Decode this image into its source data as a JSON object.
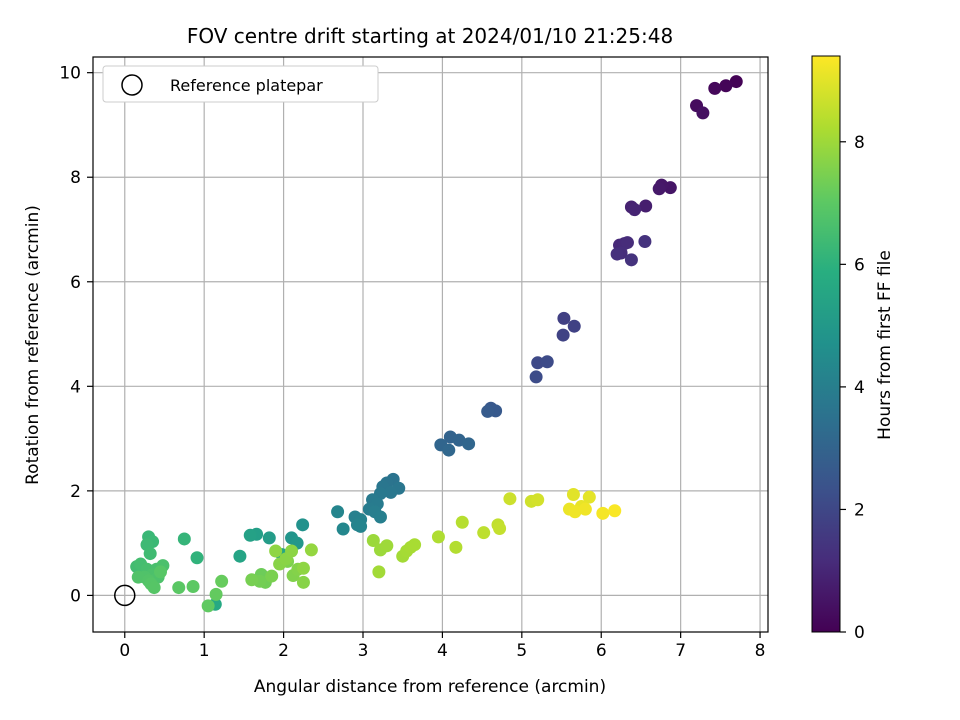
{
  "chart_data": {
    "type": "scatter",
    "title": "FOV centre drift starting at 2024/01/10 21:25:48",
    "xlabel": "Angular distance from reference (arcmin)",
    "ylabel": "Rotation from reference (arcmin)",
    "xlim": [
      -0.4,
      8.1
    ],
    "ylim": [
      -0.7,
      10.3
    ],
    "xticks": [
      0,
      1,
      2,
      3,
      4,
      5,
      6,
      7,
      8
    ],
    "yticks": [
      0,
      2,
      4,
      6,
      8,
      10
    ],
    "grid": true,
    "legend": {
      "placement": "top-left",
      "entries": [
        "Reference platepar"
      ]
    },
    "reference_point": {
      "x": 0,
      "y": 0,
      "label": "Reference platepar"
    },
    "colorbar": {
      "label": "Hours from first FF file",
      "colormap": "viridis",
      "range": [
        0,
        9.4
      ],
      "ticks": [
        0,
        2,
        4,
        6,
        8
      ]
    },
    "points": [
      {
        "x": 7.7,
        "y": 9.83,
        "c": 0.05
      },
      {
        "x": 7.57,
        "y": 9.75,
        "c": 0.12
      },
      {
        "x": 7.43,
        "y": 9.7,
        "c": 0.2
      },
      {
        "x": 7.2,
        "y": 9.37,
        "c": 0.3
      },
      {
        "x": 7.28,
        "y": 9.23,
        "c": 0.4
      },
      {
        "x": 6.87,
        "y": 7.8,
        "c": 0.55
      },
      {
        "x": 6.76,
        "y": 7.85,
        "c": 0.6
      },
      {
        "x": 6.73,
        "y": 7.78,
        "c": 0.65
      },
      {
        "x": 6.56,
        "y": 7.45,
        "c": 0.8
      },
      {
        "x": 6.38,
        "y": 7.43,
        "c": 0.9
      },
      {
        "x": 6.42,
        "y": 7.38,
        "c": 0.95
      },
      {
        "x": 6.23,
        "y": 6.7,
        "c": 1.1
      },
      {
        "x": 6.29,
        "y": 6.73,
        "c": 1.15
      },
      {
        "x": 6.33,
        "y": 6.75,
        "c": 1.2
      },
      {
        "x": 6.25,
        "y": 6.55,
        "c": 1.25
      },
      {
        "x": 6.2,
        "y": 6.53,
        "c": 1.3
      },
      {
        "x": 6.55,
        "y": 6.77,
        "c": 1.35
      },
      {
        "x": 6.38,
        "y": 6.42,
        "c": 1.4
      },
      {
        "x": 5.53,
        "y": 5.3,
        "c": 1.8
      },
      {
        "x": 5.66,
        "y": 5.15,
        "c": 1.85
      },
      {
        "x": 5.52,
        "y": 4.98,
        "c": 1.9
      },
      {
        "x": 5.2,
        "y": 4.45,
        "c": 2.1
      },
      {
        "x": 5.32,
        "y": 4.47,
        "c": 2.15
      },
      {
        "x": 5.18,
        "y": 4.18,
        "c": 2.2
      },
      {
        "x": 4.61,
        "y": 3.58,
        "c": 2.6
      },
      {
        "x": 4.67,
        "y": 3.53,
        "c": 2.65
      },
      {
        "x": 4.57,
        "y": 3.52,
        "c": 2.7
      },
      {
        "x": 4.1,
        "y": 3.03,
        "c": 3.0
      },
      {
        "x": 4.21,
        "y": 2.97,
        "c": 3.05
      },
      {
        "x": 3.98,
        "y": 2.88,
        "c": 3.1
      },
      {
        "x": 4.33,
        "y": 2.9,
        "c": 3.12
      },
      {
        "x": 4.08,
        "y": 2.78,
        "c": 3.15
      },
      {
        "x": 3.38,
        "y": 2.22,
        "c": 3.6
      },
      {
        "x": 3.3,
        "y": 2.15,
        "c": 3.65
      },
      {
        "x": 3.25,
        "y": 2.08,
        "c": 3.7
      },
      {
        "x": 3.45,
        "y": 2.05,
        "c": 3.72
      },
      {
        "x": 3.35,
        "y": 1.97,
        "c": 3.75
      },
      {
        "x": 3.22,
        "y": 1.95,
        "c": 3.8
      },
      {
        "x": 3.12,
        "y": 1.83,
        "c": 3.85
      },
      {
        "x": 3.18,
        "y": 1.75,
        "c": 3.9
      },
      {
        "x": 3.08,
        "y": 1.65,
        "c": 3.95
      },
      {
        "x": 3.15,
        "y": 1.6,
        "c": 4.0
      },
      {
        "x": 3.22,
        "y": 1.5,
        "c": 4.05
      },
      {
        "x": 2.9,
        "y": 1.5,
        "c": 4.1
      },
      {
        "x": 2.97,
        "y": 1.45,
        "c": 4.15
      },
      {
        "x": 2.93,
        "y": 1.35,
        "c": 4.2
      },
      {
        "x": 2.97,
        "y": 1.32,
        "c": 4.25
      },
      {
        "x": 2.68,
        "y": 1.6,
        "c": 4.3
      },
      {
        "x": 2.75,
        "y": 1.27,
        "c": 4.35
      },
      {
        "x": 2.24,
        "y": 1.35,
        "c": 4.8
      },
      {
        "x": 2.1,
        "y": 1.1,
        "c": 4.9
      },
      {
        "x": 2.17,
        "y": 1.0,
        "c": 5.0
      },
      {
        "x": 1.82,
        "y": 1.1,
        "c": 5.2
      },
      {
        "x": 1.66,
        "y": 1.17,
        "c": 5.3
      },
      {
        "x": 1.58,
        "y": 1.15,
        "c": 5.4
      },
      {
        "x": 1.45,
        "y": 0.75,
        "c": 5.5
      },
      {
        "x": 1.98,
        "y": 0.78,
        "c": 5.6
      },
      {
        "x": 1.14,
        "y": -0.17,
        "c": 5.7
      },
      {
        "x": 0.91,
        "y": 0.72,
        "c": 6.1
      },
      {
        "x": 0.75,
        "y": 1.08,
        "c": 6.2
      },
      {
        "x": 0.3,
        "y": 1.12,
        "c": 6.3
      },
      {
        "x": 0.35,
        "y": 1.03,
        "c": 6.35
      },
      {
        "x": 0.28,
        "y": 0.97,
        "c": 6.4
      },
      {
        "x": 0.32,
        "y": 0.8,
        "c": 6.45
      },
      {
        "x": 0.15,
        "y": 0.55,
        "c": 6.5
      },
      {
        "x": 0.2,
        "y": 0.6,
        "c": 6.55
      },
      {
        "x": 0.28,
        "y": 0.5,
        "c": 6.6
      },
      {
        "x": 0.4,
        "y": 0.5,
        "c": 6.65
      },
      {
        "x": 0.48,
        "y": 0.57,
        "c": 6.7
      },
      {
        "x": 0.35,
        "y": 0.4,
        "c": 6.72
      },
      {
        "x": 0.42,
        "y": 0.35,
        "c": 6.75
      },
      {
        "x": 0.25,
        "y": 0.35,
        "c": 6.78
      },
      {
        "x": 0.17,
        "y": 0.35,
        "c": 6.8
      },
      {
        "x": 0.3,
        "y": 0.28,
        "c": 6.85
      },
      {
        "x": 0.33,
        "y": 0.22,
        "c": 6.9
      },
      {
        "x": 0.37,
        "y": 0.15,
        "c": 6.92
      },
      {
        "x": 0.45,
        "y": 0.45,
        "c": 6.95
      },
      {
        "x": 0.68,
        "y": 0.15,
        "c": 7.0
      },
      {
        "x": 0.86,
        "y": 0.17,
        "c": 7.05
      },
      {
        "x": 1.05,
        "y": -0.2,
        "c": 7.1
      },
      {
        "x": 1.15,
        "y": 0.02,
        "c": 7.15
      },
      {
        "x": 1.22,
        "y": 0.27,
        "c": 7.2
      },
      {
        "x": 1.72,
        "y": 0.4,
        "c": 7.3
      },
      {
        "x": 1.77,
        "y": 0.25,
        "c": 7.35
      },
      {
        "x": 1.7,
        "y": 0.27,
        "c": 7.4
      },
      {
        "x": 1.6,
        "y": 0.3,
        "c": 7.45
      },
      {
        "x": 1.85,
        "y": 0.37,
        "c": 7.5
      },
      {
        "x": 2.05,
        "y": 0.65,
        "c": 7.55
      },
      {
        "x": 2.12,
        "y": 0.38,
        "c": 7.6
      },
      {
        "x": 2.18,
        "y": 0.5,
        "c": 7.65
      },
      {
        "x": 2.25,
        "y": 0.25,
        "c": 7.7
      },
      {
        "x": 1.95,
        "y": 0.6,
        "c": 7.72
      },
      {
        "x": 2.03,
        "y": 0.7,
        "c": 7.75
      },
      {
        "x": 2.1,
        "y": 0.85,
        "c": 7.78
      },
      {
        "x": 2.25,
        "y": 0.52,
        "c": 7.8
      },
      {
        "x": 1.9,
        "y": 0.85,
        "c": 7.82
      },
      {
        "x": 2.35,
        "y": 0.87,
        "c": 7.9
      },
      {
        "x": 3.13,
        "y": 1.05,
        "c": 8.0
      },
      {
        "x": 3.22,
        "y": 0.87,
        "c": 8.02
      },
      {
        "x": 3.3,
        "y": 0.95,
        "c": 8.05
      },
      {
        "x": 3.2,
        "y": 0.45,
        "c": 8.1
      },
      {
        "x": 3.5,
        "y": 0.75,
        "c": 8.12
      },
      {
        "x": 3.55,
        "y": 0.85,
        "c": 8.15
      },
      {
        "x": 3.6,
        "y": 0.92,
        "c": 8.18
      },
      {
        "x": 3.65,
        "y": 0.97,
        "c": 8.2
      },
      {
        "x": 3.95,
        "y": 1.12,
        "c": 8.3
      },
      {
        "x": 4.17,
        "y": 0.92,
        "c": 8.35
      },
      {
        "x": 4.25,
        "y": 1.4,
        "c": 8.4
      },
      {
        "x": 4.52,
        "y": 1.2,
        "c": 8.5
      },
      {
        "x": 4.7,
        "y": 1.35,
        "c": 8.55
      },
      {
        "x": 4.72,
        "y": 1.28,
        "c": 8.6
      },
      {
        "x": 4.85,
        "y": 1.85,
        "c": 8.7
      },
      {
        "x": 5.12,
        "y": 1.8,
        "c": 8.75
      },
      {
        "x": 5.2,
        "y": 1.83,
        "c": 8.8
      },
      {
        "x": 5.65,
        "y": 1.93,
        "c": 9.0
      },
      {
        "x": 5.85,
        "y": 1.88,
        "c": 9.05
      },
      {
        "x": 5.75,
        "y": 1.7,
        "c": 9.1
      },
      {
        "x": 5.6,
        "y": 1.65,
        "c": 9.15
      },
      {
        "x": 5.67,
        "y": 1.6,
        "c": 9.2
      },
      {
        "x": 5.8,
        "y": 1.65,
        "c": 9.22
      },
      {
        "x": 6.02,
        "y": 1.57,
        "c": 9.28
      },
      {
        "x": 6.17,
        "y": 1.62,
        "c": 9.35
      }
    ]
  }
}
